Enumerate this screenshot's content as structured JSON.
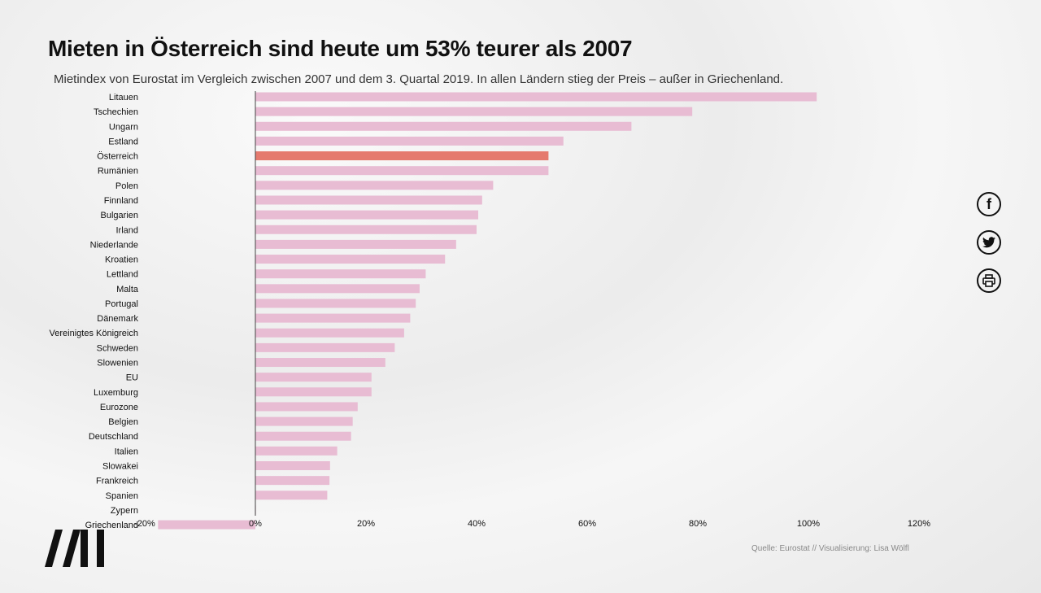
{
  "title": "Mieten in Österreich sind heute um 53% teurer als 2007",
  "subtitle": "Mietindex von Eurostat im Vergleich zwischen 2007 und dem 3. Quartal 2019. In allen Ländern stieg der Preis – außer in Griechenland.",
  "source": "Quelle: Eurostat // Visualisierung: Lisa Wölfl",
  "share": {
    "facebook_icon": "facebook-icon",
    "twitter_icon": "twitter-icon",
    "print_icon": "print-icon"
  },
  "colors": {
    "bar": "#e8bcd3",
    "highlight": "#e57a6e",
    "axis": "#444444"
  },
  "chart_data": {
    "type": "bar",
    "orientation": "horizontal",
    "highlight": "Österreich",
    "xlim": [
      -20,
      120
    ],
    "x_ticks": [
      -20,
      0,
      20,
      40,
      60,
      80,
      100,
      120
    ],
    "x_tick_labels": [
      "-20%",
      "0%",
      "20%",
      "40%",
      "60%",
      "80%",
      "100%",
      "120%"
    ],
    "grid": false,
    "categories": [
      "Litauen",
      "Tschechien",
      "Ungarn",
      "Estland",
      "Österreich",
      "Rumänien",
      "Polen",
      "Finnland",
      "Bulgarien",
      "Irland",
      "Niederlande",
      "Kroatien",
      "Lettland",
      "Malta",
      "Portugal",
      "Dänemark",
      "Vereinigtes Königreich",
      "Schweden",
      "Slowenien",
      "EU",
      "Luxemburg",
      "Eurozone",
      "Belgien",
      "Deutschland",
      "Italien",
      "Slowakei",
      "Frankreich",
      "Spanien",
      "Zypern",
      "Griechenland"
    ],
    "values": [
      101.5,
      79,
      68,
      55.7,
      53,
      53,
      43,
      41,
      40.3,
      40,
      36.3,
      34.3,
      30.8,
      29.7,
      29,
      28,
      26.9,
      25.2,
      23.5,
      21,
      21,
      18.5,
      17.6,
      17.3,
      14.8,
      13.5,
      13.4,
      13,
      0.1,
      -17.6
    ]
  }
}
